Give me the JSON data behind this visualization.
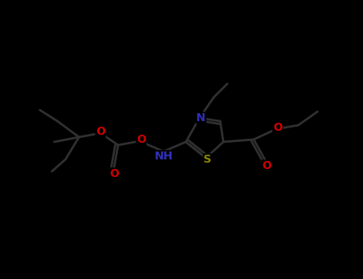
{
  "background_color": "#000000",
  "bond_color": "#303030",
  "bond_width": 2.0,
  "figsize": [
    4.55,
    3.5
  ],
  "dpi": 100,
  "colors": {
    "N": "#3030bb",
    "S": "#888800",
    "O": "#cc0000",
    "C": "#303030"
  }
}
